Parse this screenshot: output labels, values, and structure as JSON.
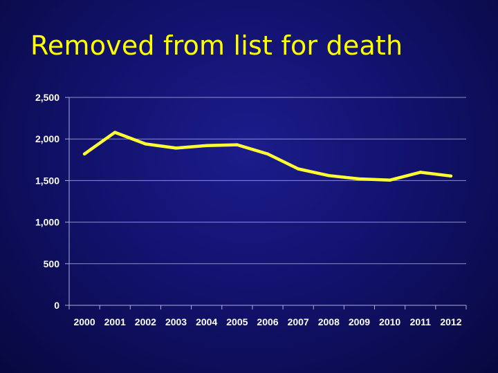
{
  "slide": {
    "title": "Removed from list for death"
  },
  "colors": {
    "title": "#ffff00",
    "series": "#ffff33",
    "background": "#12126e"
  },
  "chart_data": {
    "type": "line",
    "title": "",
    "xlabel": "",
    "ylabel": "",
    "categories": [
      "2000",
      "2001",
      "2002",
      "2003",
      "2004",
      "2005",
      "2006",
      "2007",
      "2008",
      "2009",
      "2010",
      "2011",
      "2012"
    ],
    "series": [
      {
        "values": [
          1820,
          2080,
          1940,
          1890,
          1920,
          1930,
          1820,
          1640,
          1560,
          1520,
          1505,
          1600,
          1555
        ]
      }
    ],
    "ylim": [
      0,
      2500
    ],
    "yticks": [
      0,
      500,
      1000,
      1500,
      2000,
      2500
    ],
    "ytick_labels": [
      "0",
      "500",
      "1,000",
      "1,500",
      "2,000",
      "2,500"
    ],
    "grid": "horizontal",
    "legend": "none"
  }
}
